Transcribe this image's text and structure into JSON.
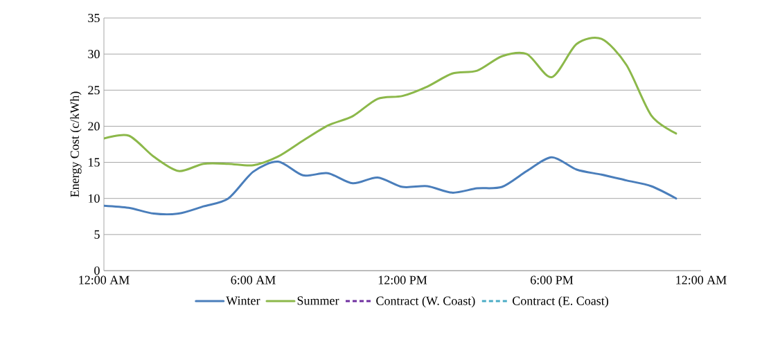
{
  "chart_data": {
    "type": "line",
    "ylabel": "Energy Cost (c/kWh)",
    "x": [
      0,
      1,
      2,
      3,
      4,
      5,
      6,
      7,
      8,
      9,
      10,
      11,
      12,
      13,
      14,
      15,
      16,
      17,
      18,
      19,
      20,
      21,
      22,
      23
    ],
    "series": [
      {
        "name": "Winter",
        "color": "#4a7ebb",
        "line_style": "solid",
        "values": [
          9.0,
          8.7,
          7.9,
          7.9,
          8.9,
          10.0,
          13.7,
          15.1,
          13.2,
          13.5,
          12.1,
          12.9,
          11.6,
          11.7,
          10.8,
          11.4,
          11.6,
          13.8,
          15.7,
          14.0,
          13.3,
          12.5,
          11.7,
          10.0
        ]
      },
      {
        "name": "Summer",
        "color": "#8cb84a",
        "line_style": "solid",
        "values": [
          18.3,
          18.7,
          15.8,
          13.8,
          14.8,
          14.8,
          14.6,
          15.8,
          18.0,
          20.1,
          21.4,
          23.8,
          24.2,
          25.5,
          27.3,
          27.7,
          29.7,
          30.0,
          26.8,
          31.4,
          32.1,
          28.5,
          21.5,
          19.0
        ]
      },
      {
        "name": "Contract (W. Coast)",
        "color": "#7030a0",
        "line_style": "dashed",
        "values": [
          null,
          null,
          null,
          null,
          null,
          null,
          null,
          null,
          null,
          null,
          null,
          null,
          null,
          null,
          null,
          null,
          null,
          null,
          null,
          null,
          null,
          null,
          null,
          null
        ]
      },
      {
        "name": "Contract (E. Coast)",
        "color": "#4bacc6",
        "line_style": "dashed",
        "values": [
          null,
          null,
          null,
          null,
          null,
          null,
          null,
          null,
          null,
          null,
          null,
          null,
          null,
          null,
          null,
          null,
          null,
          null,
          null,
          null,
          null,
          null,
          null,
          null
        ]
      }
    ],
    "xlim": [
      0,
      24
    ],
    "xticks": [
      {
        "value": 0,
        "label": "12:00 AM"
      },
      {
        "value": 6,
        "label": "6:00 AM"
      },
      {
        "value": 12,
        "label": "12:00 PM"
      },
      {
        "value": 18,
        "label": "6:00 PM"
      },
      {
        "value": 24,
        "label": "12:00 AM"
      }
    ],
    "ylim": [
      0,
      35
    ],
    "yticks": [
      0,
      5,
      10,
      15,
      20,
      25,
      30,
      35
    ],
    "grid": "y",
    "legend": "bottom",
    "marker": "none"
  }
}
